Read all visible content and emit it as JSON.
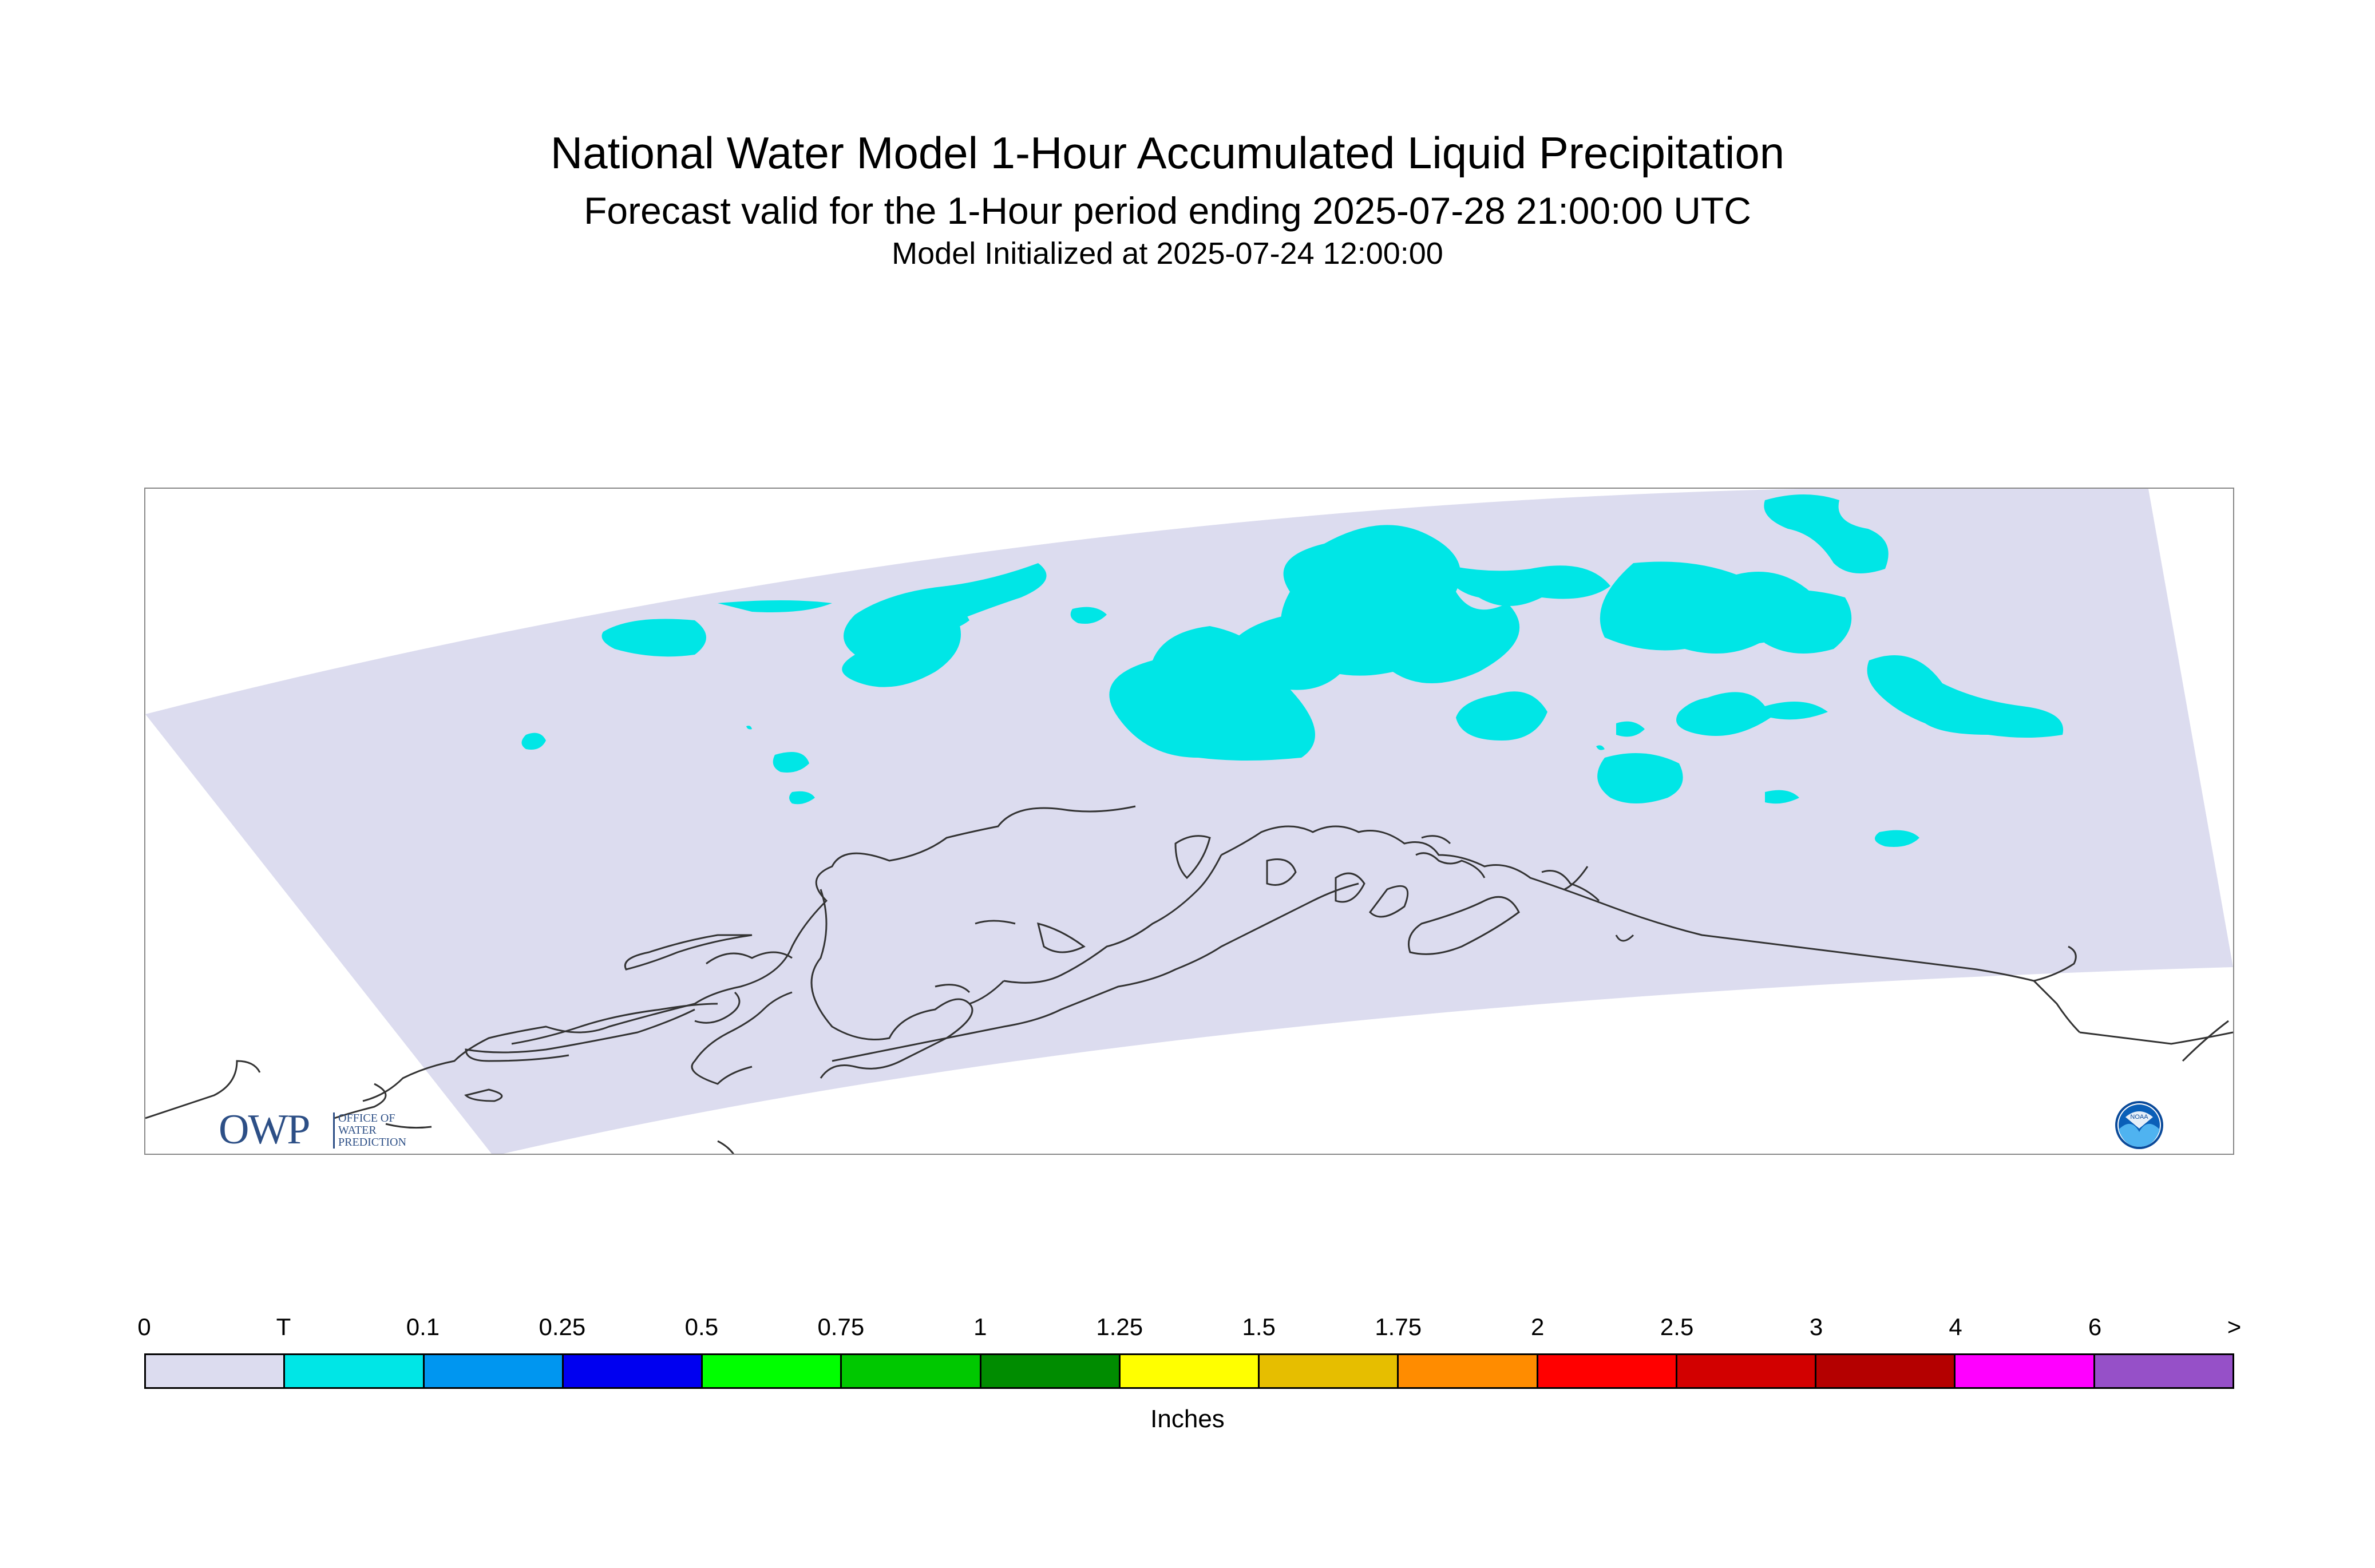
{
  "header": {
    "title": "National Water Model 1-Hour Accumulated Liquid Precipitation",
    "subtitle": "Forecast valid for the 1-Hour period ending 2025-07-28 21:00:00 UTC",
    "init_line": "Model Initialized at 2025-07-24 12:00:00"
  },
  "map": {
    "background_color": "#dcdcef",
    "precip_color": "#00e6e6",
    "coastline_color": "#333333",
    "region": "Alaska"
  },
  "logos": {
    "owp": {
      "main": "OWP",
      "line1": "OFFICE OF",
      "line2": "WATER",
      "line3": "PREDICTION",
      "icon": "owp-logo"
    },
    "noaa": {
      "label": "NOAA",
      "icon": "noaa-logo"
    }
  },
  "legend": {
    "ticks": [
      "0",
      "T",
      "0.1",
      "0.25",
      "0.5",
      "0.75",
      "1",
      "1.25",
      "1.5",
      "1.75",
      "2",
      "2.5",
      "3",
      "4",
      "6",
      ">"
    ],
    "colors": [
      "#dcdcef",
      "#00e6e6",
      "#0096f0",
      "#0000f0",
      "#00ff00",
      "#00c800",
      "#008c00",
      "#ffff00",
      "#e6be00",
      "#ff8c00",
      "#ff0000",
      "#d20000",
      "#b40000",
      "#ff00ff",
      "#9650c8"
    ],
    "units": "Inches"
  }
}
